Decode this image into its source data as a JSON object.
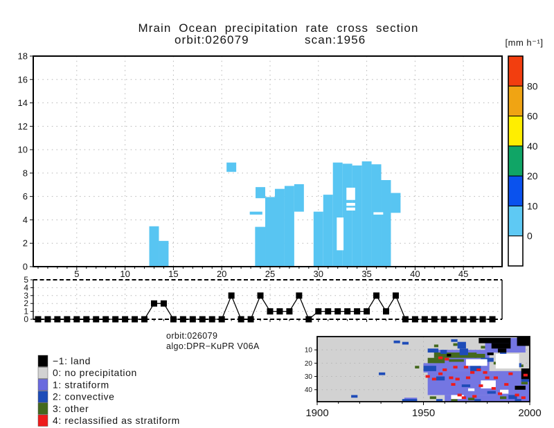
{
  "title": {
    "line1": "Mrain Ocean precipitation rate cross section",
    "orbit": "orbit:026079",
    "scan": "scan:1956"
  },
  "colorbar": {
    "unit_label": "[mm h⁻¹]",
    "boundary_labels": [
      "80",
      "60",
      "40",
      "20",
      "10",
      "0"
    ],
    "segment_colors_top_to_bottom": [
      "#f23e0f",
      "#f0a413",
      "#ffee00",
      "#10a566",
      "#0a52ee",
      "#5ec9f4",
      "#ffffff"
    ]
  },
  "caption": {
    "orbit": "orbit:026079",
    "algo": "algo:DPR−KuPR V06A"
  },
  "legend": {
    "items": [
      {
        "label": "−1: land",
        "color": "#000000"
      },
      {
        "label": "0: no precipitation",
        "color": "#d2d2d2"
      },
      {
        "label": "1: stratiform",
        "color": "#6a6ade"
      },
      {
        "label": "2: convective",
        "color": "#1e4cb8"
      },
      {
        "label": "3: other",
        "color": "#44691e"
      },
      {
        "label": "4: reclassified as stratiform",
        "color": "#ee1b1b"
      }
    ]
  },
  "chart_data": [
    {
      "type": "area",
      "name": "precipitation-rate-cross-section",
      "x_range": [
        0.5,
        49
      ],
      "y_range": [
        0,
        18
      ],
      "x_major_ticks": [
        5,
        10,
        15,
        20,
        25,
        30,
        35,
        40,
        45
      ],
      "y_ticks": [
        0,
        2,
        4,
        6,
        8,
        10,
        12,
        14,
        16,
        18
      ],
      "fill_color": "#58c5f2",
      "grid": "dotted",
      "cells": [
        [
          12.5,
          13.5,
          0,
          3.45
        ],
        [
          13.5,
          14.5,
          0,
          2.2
        ],
        [
          20.5,
          21.5,
          8.1,
          8.9
        ],
        [
          23.5,
          24.5,
          5.85,
          6.8
        ],
        [
          22.9,
          24.2,
          4.45,
          4.7
        ],
        [
          23.45,
          24.5,
          0,
          3.4
        ],
        [
          24.5,
          26.5,
          0,
          5.95
        ],
        [
          25.5,
          26.5,
          5.95,
          6.65
        ],
        [
          26.5,
          27.5,
          0,
          6.9
        ],
        [
          27.5,
          28.5,
          4.7,
          7.05
        ],
        [
          29.5,
          30.5,
          0,
          4.7
        ],
        [
          30.5,
          31.5,
          0,
          6.15
        ],
        [
          31.5,
          32.5,
          0,
          8.9
        ],
        [
          32.5,
          33.5,
          0,
          8.8
        ],
        [
          33.5,
          34.5,
          0,
          8.65
        ],
        [
          34.5,
          35.5,
          0,
          9.0
        ],
        [
          35.5,
          36.5,
          0,
          8.75
        ],
        [
          36.5,
          37.5,
          0,
          7.4
        ],
        [
          37.5,
          38.5,
          4.6,
          6.3
        ]
      ],
      "holes": [
        [
          31.9,
          32.6,
          1.4,
          4.2
        ],
        [
          32.9,
          33.8,
          5.7,
          6.75
        ],
        [
          32.9,
          33.8,
          5.2,
          5.45
        ],
        [
          32.9,
          33.8,
          4.8,
          5.05
        ],
        [
          35.7,
          36.7,
          4.45,
          4.65
        ]
      ]
    },
    {
      "type": "line",
      "name": "rain-type-flag-profile",
      "x_start": 1,
      "values": [
        0,
        0,
        0,
        0,
        0,
        0,
        0,
        0,
        0,
        0,
        0,
        0,
        2,
        2,
        0,
        0,
        0,
        0,
        0,
        0,
        3,
        0,
        0,
        3,
        1,
        1,
        1,
        3,
        0,
        1,
        1,
        1,
        1,
        1,
        1,
        3,
        1,
        3,
        0,
        0,
        0,
        0,
        0,
        0,
        0,
        0,
        0,
        0
      ],
      "y_range": [
        0,
        5
      ],
      "y_ticks": [
        0,
        1,
        2,
        3,
        4,
        5
      ],
      "marker": "black-square",
      "line_color": "#000000"
    },
    {
      "type": "heatmap",
      "name": "scan-angle-raintype-map",
      "x_range": [
        1900,
        2000
      ],
      "x_tick_labels": [
        "1900",
        "1950",
        "2000"
      ],
      "x_tick_values": [
        1900,
        1950,
        2000
      ],
      "y_bin_ticks": [
        10,
        20,
        30,
        40
      ],
      "bins": 49,
      "background": "#d2d2d2",
      "colors": {
        "s": "#7476e2",
        "c": "#1e4cb8",
        "o": "#44691e",
        "w": "#ffffff",
        "l": "#000000",
        "r": "#ee1b1b"
      },
      "color_meaning": {
        "s": "stratiform",
        "c": "convective",
        "o": "other",
        "w": "empty",
        "l": "land",
        "r": "reclassified as stratiform"
      },
      "regions": [
        [
          "s",
          1941,
          1947,
          46,
          49
        ],
        [
          "s",
          1950,
          1958,
          20,
          27
        ],
        [
          "s",
          1952,
          1999,
          26,
          44
        ],
        [
          "s",
          1955,
          1981,
          10,
          26
        ],
        [
          "s",
          1979,
          1998,
          1,
          12
        ],
        [
          "s",
          1984,
          2000,
          26,
          49
        ],
        [
          "s",
          1960,
          1992,
          44,
          49
        ],
        [
          "o",
          1955,
          1975,
          12,
          16
        ],
        [
          "o",
          1952,
          1960,
          16,
          20
        ],
        [
          "o",
          1962,
          1969,
          17,
          19
        ],
        [
          "o",
          1974,
          1979,
          13,
          16
        ],
        [
          "o",
          1946,
          1948,
          22,
          24
        ],
        [
          "o",
          1955,
          1957,
          6,
          8
        ],
        [
          "o",
          1964,
          1966,
          5,
          7
        ],
        [
          "o",
          1977,
          1979,
          7,
          9
        ],
        [
          "o",
          1983,
          1986,
          19,
          21
        ],
        [
          "o",
          1989,
          1991,
          15,
          17
        ],
        [
          "o",
          1994,
          1997,
          21,
          23
        ],
        [
          "o",
          1953,
          1956,
          45,
          47
        ],
        [
          "o",
          1963,
          1966,
          47,
          49
        ],
        [
          "o",
          1971,
          1974,
          46,
          48
        ],
        [
          "o",
          1986,
          1989,
          45,
          47
        ],
        [
          "o",
          1996,
          1999,
          34,
          36
        ],
        [
          "c",
          1916,
          1919,
          44,
          46
        ],
        [
          "c",
          1929,
          1932,
          27,
          29
        ],
        [
          "c",
          1936,
          1939,
          3,
          5
        ],
        [
          "c",
          1940,
          1943,
          4,
          6
        ],
        [
          "c",
          1940,
          1947,
          47,
          49
        ],
        [
          "c",
          1950,
          1956,
          22,
          26
        ],
        [
          "c",
          1952,
          1957,
          9,
          12
        ],
        [
          "c",
          1958,
          1961,
          10,
          13
        ],
        [
          "c",
          1963,
          1966,
          2,
          4
        ],
        [
          "c",
          1966,
          1970,
          4,
          9
        ],
        [
          "c",
          1967,
          1971,
          9,
          14
        ],
        [
          "c",
          1972,
          1977,
          22,
          26
        ],
        [
          "c",
          1977,
          1983,
          16,
          19
        ],
        [
          "c",
          1986,
          1989,
          12,
          15
        ],
        [
          "c",
          1992,
          1996,
          20,
          23
        ],
        [
          "c",
          1956,
          1960,
          30,
          33
        ],
        [
          "c",
          1968,
          1972,
          36,
          38
        ],
        [
          "c",
          1980,
          1984,
          41,
          43
        ],
        [
          "c",
          1990,
          1994,
          44,
          47
        ],
        [
          "c",
          1996,
          2000,
          32,
          34
        ],
        [
          "c",
          1956,
          1959,
          47,
          49
        ],
        [
          "c",
          1974,
          1977,
          47,
          49
        ],
        [
          "c",
          1993,
          1996,
          47,
          49
        ],
        [
          "w",
          1970,
          1980,
          17,
          22
        ],
        [
          "w",
          1984,
          1995,
          13,
          24
        ],
        [
          "w",
          1977,
          1984,
          33,
          39
        ],
        [
          "w",
          1963,
          1969,
          44,
          47
        ],
        [
          "w",
          1971,
          1974,
          39,
          41
        ],
        [
          "w",
          1986,
          1990,
          40,
          43
        ],
        [
          "l",
          1976,
          1991,
          1,
          5
        ],
        [
          "l",
          1982,
          1991,
          5,
          9
        ],
        [
          "l",
          1985,
          1989,
          9,
          12
        ],
        [
          "l",
          1994,
          2000,
          0,
          7
        ],
        [
          "l",
          1996,
          2000,
          24,
          32
        ],
        [
          "l",
          1993,
          1998,
          37,
          40
        ],
        [
          "l",
          1961,
          1963,
          13,
          15
        ],
        [
          "l",
          1980,
          1983,
          12,
          14
        ]
      ],
      "specks": [
        [
          "r",
          1951,
          29
        ],
        [
          "r",
          1954,
          31
        ],
        [
          "r",
          1957,
          27
        ],
        [
          "r",
          1959,
          24
        ],
        [
          "r",
          1962,
          30
        ],
        [
          "r",
          1965,
          31
        ],
        [
          "r",
          1957,
          15
        ],
        [
          "r",
          1960,
          16
        ],
        [
          "r",
          1963,
          35
        ],
        [
          "r",
          1966,
          43
        ],
        [
          "r",
          1968,
          45
        ],
        [
          "r",
          1970,
          30
        ],
        [
          "r",
          1972,
          26
        ],
        [
          "r",
          1975,
          24
        ],
        [
          "r",
          1976,
          36
        ],
        [
          "r",
          1979,
          30
        ],
        [
          "r",
          1982,
          38
        ],
        [
          "r",
          1985,
          42
        ],
        [
          "r",
          1988,
          35
        ],
        [
          "r",
          1990,
          27
        ],
        [
          "r",
          1993,
          43
        ],
        [
          "r",
          1996,
          45
        ],
        [
          "r",
          1997,
          28
        ],
        [
          "r",
          1964,
          22
        ],
        [
          "r",
          1969,
          22
        ],
        [
          "r",
          1973,
          44
        ],
        [
          "r",
          1978,
          26
        ],
        [
          "r",
          1983,
          30
        ]
      ]
    }
  ]
}
